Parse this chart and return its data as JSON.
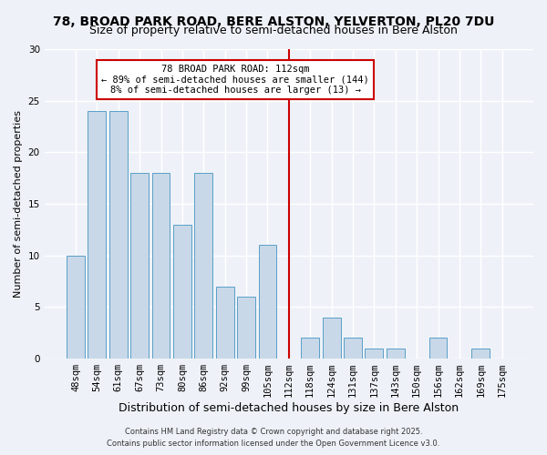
{
  "title": "78, BROAD PARK ROAD, BERE ALSTON, YELVERTON, PL20 7DU",
  "subtitle": "Size of property relative to semi-detached houses in Bere Alston",
  "xlabel": "Distribution of semi-detached houses by size in Bere Alston",
  "ylabel": "Number of semi-detached properties",
  "bar_labels": [
    "48sqm",
    "54sqm",
    "61sqm",
    "67sqm",
    "73sqm",
    "80sqm",
    "86sqm",
    "92sqm",
    "99sqm",
    "105sqm",
    "112sqm",
    "118sqm",
    "124sqm",
    "131sqm",
    "137sqm",
    "143sqm",
    "150sqm",
    "156sqm",
    "162sqm",
    "169sqm",
    "175sqm"
  ],
  "bar_values": [
    10,
    24,
    24,
    18,
    18,
    13,
    18,
    7,
    6,
    11,
    0,
    2,
    4,
    2,
    1,
    1,
    0,
    2,
    0,
    1,
    0
  ],
  "bar_color": "#c8d8e8",
  "bar_edge_color": "#5a9fc8",
  "highlight_index": 10,
  "highlight_line_color": "#cc0000",
  "annotation_line1": "78 BROAD PARK ROAD: 112sqm",
  "annotation_line2": "← 89% of semi-detached houses are smaller (144)",
  "annotation_line3": "8% of semi-detached houses are larger (13) →",
  "annotation_box_edgecolor": "#cc0000",
  "ylim": [
    0,
    30
  ],
  "yticks": [
    0,
    5,
    10,
    15,
    20,
    25,
    30
  ],
  "footnote1": "Contains HM Land Registry data © Crown copyright and database right 2025.",
  "footnote2": "Contains public sector information licensed under the Open Government Licence v3.0.",
  "background_color": "#eef2f8",
  "grid_color": "#ffffff",
  "title_fontsize": 10,
  "subtitle_fontsize": 9,
  "xlabel_fontsize": 9,
  "ylabel_fontsize": 8,
  "tick_fontsize": 7.5,
  "annotation_fontsize": 7.5,
  "footnote_fontsize": 6
}
